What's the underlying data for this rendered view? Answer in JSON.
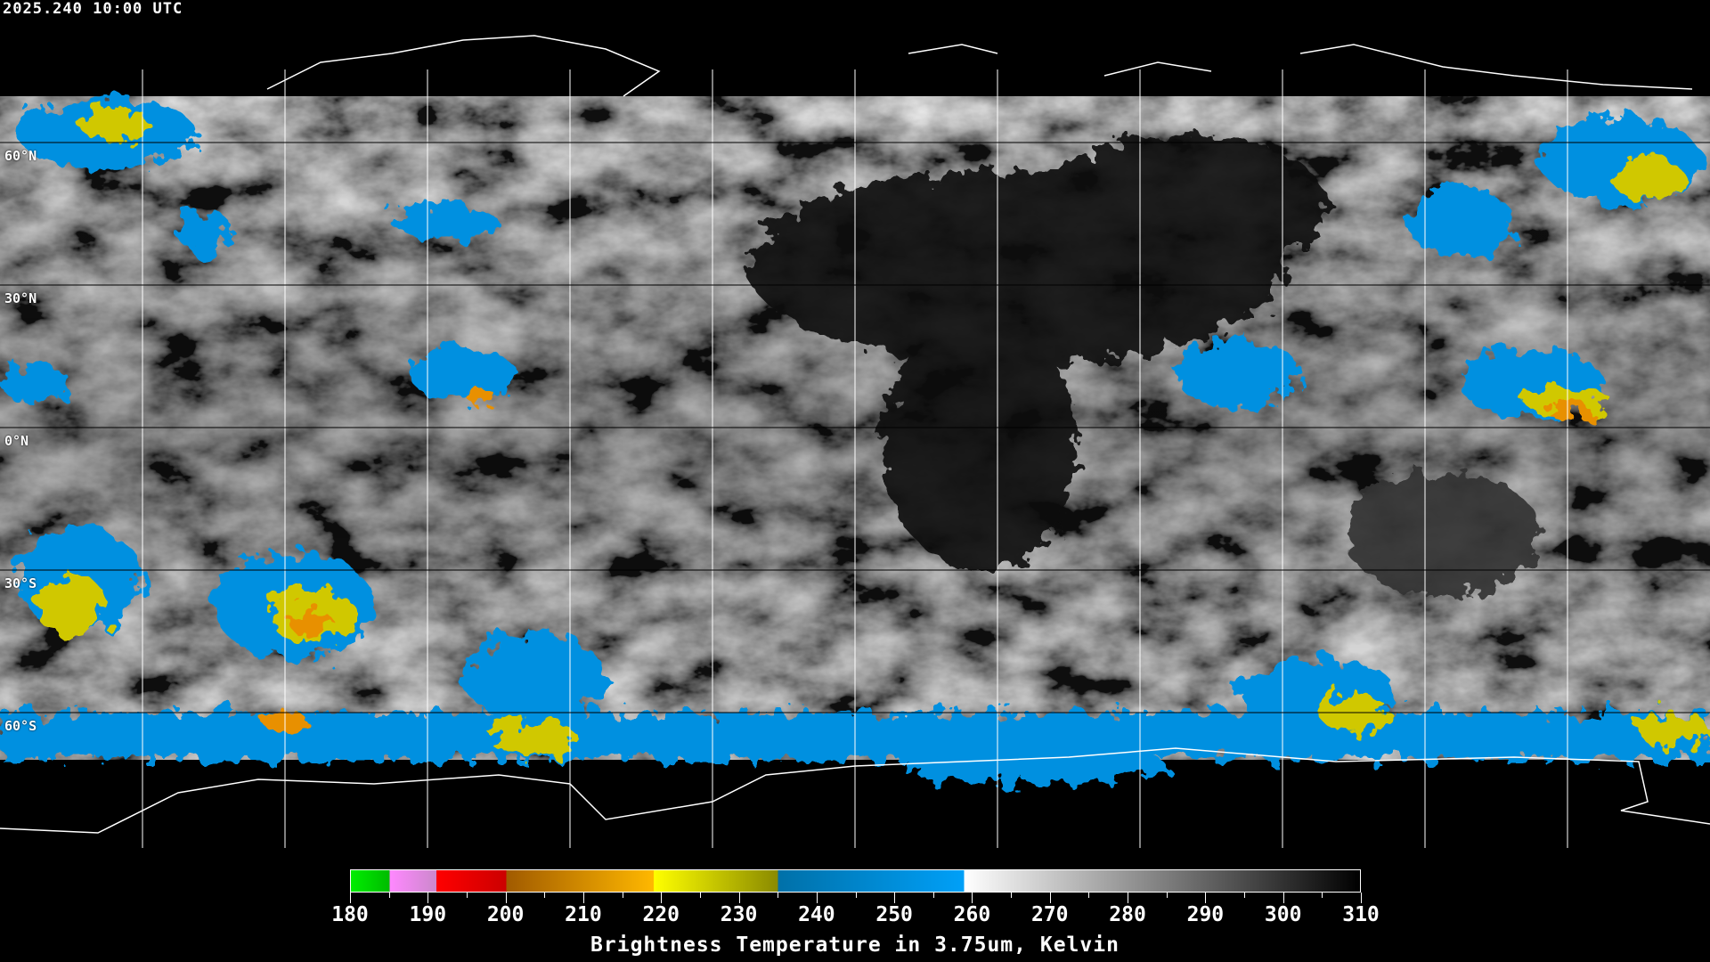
{
  "header": {
    "timestamp": "2025.240 10:00 UTC"
  },
  "map": {
    "projection": "equirectangular",
    "grid_lat_labels": [
      "60°N",
      "30°N",
      "0°N",
      "30°S",
      "60°S"
    ],
    "grid_spacing_deg": 30,
    "coastline_color": "#000000",
    "polar_coastline_color": "#ffffff"
  },
  "colorbar": {
    "min": 180,
    "max": 310,
    "tick_labels": [
      "180",
      "190",
      "200",
      "210",
      "220",
      "230",
      "240",
      "250",
      "260",
      "270",
      "280",
      "290",
      "300",
      "310"
    ],
    "segments": [
      {
        "from": 180,
        "to": 185,
        "colors": [
          "#00ee00",
          "#00bb00"
        ]
      },
      {
        "from": 185,
        "to": 191,
        "colors": [
          "#ff88ff",
          "#cc88cc"
        ]
      },
      {
        "from": 191,
        "to": 200,
        "colors": [
          "#ff0000",
          "#cc0000"
        ]
      },
      {
        "from": 200,
        "to": 219,
        "colors": [
          "#a05a00",
          "#ffb800"
        ]
      },
      {
        "from": 219,
        "to": 235,
        "colors": [
          "#ffff00",
          "#8a8a00"
        ]
      },
      {
        "from": 235,
        "to": 259,
        "colors": [
          "#0070a8",
          "#00a0f8"
        ]
      },
      {
        "from": 259,
        "to": 310,
        "colors": [
          "#ffffff",
          "#000000"
        ]
      }
    ],
    "title": "Brightness Temperature in 3.75um, Kelvin"
  }
}
